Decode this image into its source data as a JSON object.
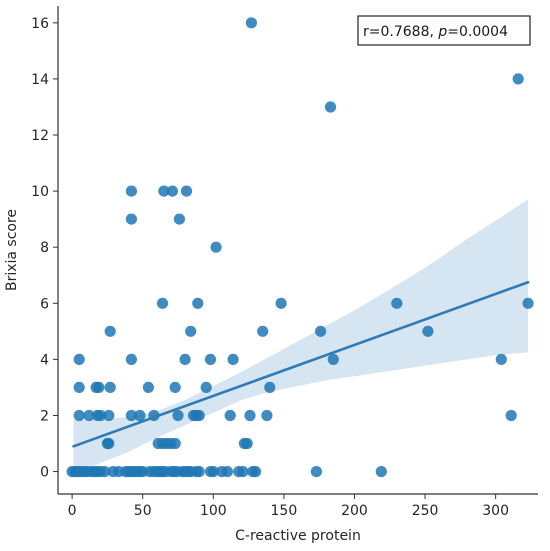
{
  "chart_data": {
    "type": "scatter",
    "xlabel": "C-reactive protein",
    "ylabel": "Brixia score",
    "xlim": [
      -10,
      330
    ],
    "ylim": [
      -0.8,
      16.6
    ],
    "xticks": [
      0,
      50,
      100,
      150,
      200,
      250,
      300
    ],
    "yticks": [
      0,
      2,
      4,
      6,
      8,
      10,
      12,
      14,
      16
    ],
    "annotation": {
      "r_text": "r=0.7688, ",
      "p_symbol": "p",
      "p_text": "=0.0004"
    },
    "colors": {
      "point": "#1f77b4",
      "line": "#2f7bb6",
      "band": "#cfe0f0"
    },
    "regression": {
      "x_start": 1,
      "x_end": 323,
      "y_start": 0.9,
      "y_end": 6.75
    },
    "confidence_band": {
      "x": [
        1,
        20,
        40,
        60,
        80,
        100,
        120,
        140,
        160,
        180,
        200,
        220,
        240,
        260,
        280,
        300,
        323
      ],
      "upper": [
        1.85,
        1.85,
        1.95,
        2.15,
        2.55,
        3.05,
        3.55,
        4.1,
        4.65,
        5.2,
        5.75,
        6.35,
        6.95,
        7.6,
        8.3,
        8.95,
        9.7
      ],
      "lower": [
        -0.05,
        0.3,
        0.7,
        1.2,
        1.65,
        2.1,
        2.55,
        2.85,
        3.05,
        3.25,
        3.4,
        3.55,
        3.7,
        3.85,
        4.0,
        4.15,
        4.25
      ]
    },
    "points": [
      [
        0,
        0
      ],
      [
        2,
        0
      ],
      [
        3,
        0
      ],
      [
        5,
        0
      ],
      [
        7,
        0
      ],
      [
        9,
        0
      ],
      [
        11,
        0
      ],
      [
        14,
        0
      ],
      [
        16,
        0
      ],
      [
        18,
        0
      ],
      [
        20,
        0
      ],
      [
        23,
        0
      ],
      [
        29,
        0
      ],
      [
        33,
        0
      ],
      [
        38,
        0
      ],
      [
        40,
        0
      ],
      [
        42,
        0
      ],
      [
        44,
        0
      ],
      [
        46,
        0
      ],
      [
        48,
        0
      ],
      [
        50,
        0
      ],
      [
        55,
        0
      ],
      [
        58,
        0
      ],
      [
        60,
        0
      ],
      [
        62,
        0
      ],
      [
        64,
        0
      ],
      [
        66,
        0
      ],
      [
        70,
        0
      ],
      [
        72,
        0
      ],
      [
        74,
        0
      ],
      [
        78,
        0
      ],
      [
        80,
        0
      ],
      [
        82,
        0
      ],
      [
        84,
        0
      ],
      [
        88,
        0
      ],
      [
        90,
        0
      ],
      [
        98,
        0
      ],
      [
        100,
        0
      ],
      [
        106,
        0
      ],
      [
        110,
        0
      ],
      [
        118,
        0
      ],
      [
        121,
        0
      ],
      [
        128,
        0
      ],
      [
        130,
        0
      ],
      [
        173,
        0
      ],
      [
        219,
        0
      ],
      [
        61,
        1
      ],
      [
        64,
        1
      ],
      [
        67,
        1
      ],
      [
        70,
        1
      ],
      [
        73,
        1
      ],
      [
        25,
        1
      ],
      [
        26,
        1
      ],
      [
        122,
        1
      ],
      [
        124,
        1
      ],
      [
        5,
        2
      ],
      [
        12,
        2
      ],
      [
        18,
        2
      ],
      [
        20,
        2
      ],
      [
        26,
        2
      ],
      [
        42,
        2
      ],
      [
        48,
        2
      ],
      [
        58,
        2
      ],
      [
        75,
        2
      ],
      [
        86,
        2
      ],
      [
        88,
        2
      ],
      [
        90,
        2
      ],
      [
        112,
        2
      ],
      [
        126,
        2
      ],
      [
        138,
        2
      ],
      [
        311,
        2
      ],
      [
        5,
        3
      ],
      [
        17,
        3
      ],
      [
        19,
        3
      ],
      [
        27,
        3
      ],
      [
        54,
        3
      ],
      [
        73,
        3
      ],
      [
        95,
        3
      ],
      [
        140,
        3
      ],
      [
        5,
        4
      ],
      [
        42,
        4
      ],
      [
        80,
        4
      ],
      [
        98,
        4
      ],
      [
        114,
        4
      ],
      [
        185,
        4
      ],
      [
        304,
        4
      ],
      [
        27,
        5
      ],
      [
        84,
        5
      ],
      [
        135,
        5
      ],
      [
        176,
        5
      ],
      [
        252,
        5
      ],
      [
        64,
        6
      ],
      [
        89,
        6
      ],
      [
        148,
        6
      ],
      [
        230,
        6
      ],
      [
        323,
        6
      ],
      [
        42,
        9
      ],
      [
        76,
        9
      ],
      [
        102,
        8
      ],
      [
        42,
        10
      ],
      [
        65,
        10
      ],
      [
        71,
        10
      ],
      [
        81,
        10
      ],
      [
        183,
        13
      ],
      [
        316,
        14
      ],
      [
        127,
        16
      ]
    ]
  }
}
